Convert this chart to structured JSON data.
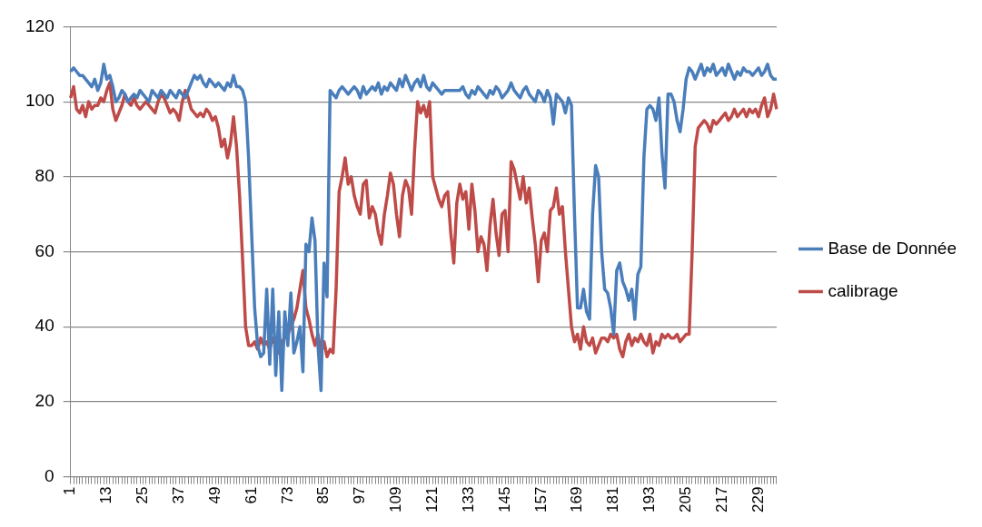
{
  "chart_data": {
    "type": "line",
    "categories": [
      "1",
      null,
      null,
      null,
      null,
      null,
      null,
      null,
      null,
      null,
      null,
      null,
      "13",
      null,
      null,
      null,
      null,
      null,
      null,
      null,
      null,
      null,
      null,
      null,
      "25",
      null,
      null,
      null,
      null,
      null,
      null,
      null,
      null,
      null,
      null,
      null,
      "37",
      null,
      null,
      null,
      null,
      null,
      null,
      null,
      null,
      null,
      null,
      null,
      "49",
      null,
      null,
      null,
      null,
      null,
      null,
      null,
      null,
      null,
      null,
      null,
      "61",
      null,
      null,
      null,
      null,
      null,
      null,
      null,
      null,
      null,
      null,
      null,
      "73",
      null,
      null,
      null,
      null,
      null,
      null,
      null,
      null,
      null,
      null,
      null,
      "85",
      null,
      null,
      null,
      null,
      null,
      null,
      null,
      null,
      null,
      null,
      null,
      "97",
      null,
      null,
      null,
      null,
      null,
      null,
      null,
      null,
      null,
      null,
      null,
      "109",
      null,
      null,
      null,
      null,
      null,
      null,
      null,
      null,
      null,
      null,
      null,
      "121",
      null,
      null,
      null,
      null,
      null,
      null,
      null,
      null,
      null,
      null,
      null,
      "133",
      null,
      null,
      null,
      null,
      null,
      null,
      null,
      null,
      null,
      null,
      null,
      "145",
      null,
      null,
      null,
      null,
      null,
      null,
      null,
      null,
      null,
      null,
      null,
      "157",
      null,
      null,
      null,
      null,
      null,
      null,
      null,
      null,
      null,
      null,
      null,
      "169",
      null,
      null,
      null,
      null,
      null,
      null,
      null,
      null,
      null,
      null,
      null,
      "181",
      null,
      null,
      null,
      null,
      null,
      null,
      null,
      null,
      null,
      null,
      null,
      "193",
      null,
      null,
      null,
      null,
      null,
      null,
      null,
      null,
      null,
      null,
      null,
      "205",
      null,
      null,
      null,
      null,
      null,
      null,
      null,
      null,
      null,
      null,
      null,
      "217",
      null,
      null,
      null,
      null,
      null,
      null,
      null,
      null,
      null,
      null,
      null,
      "229",
      null,
      null,
      null,
      null,
      null,
      null
    ],
    "series": [
      {
        "name": "Base de Donnée",
        "color": "#4a7ebb",
        "values": [
          108,
          109,
          108,
          107,
          107,
          106,
          105,
          104,
          106,
          103,
          105,
          110,
          106,
          107,
          104,
          100,
          101,
          103,
          102,
          100,
          101,
          102,
          101,
          103,
          102,
          101,
          100,
          103,
          102,
          101,
          103,
          102,
          101,
          103,
          102,
          101,
          103,
          102,
          101,
          103,
          105,
          107,
          106,
          107,
          105,
          104,
          106,
          105,
          104,
          105,
          104,
          103,
          105,
          104,
          107,
          104,
          104,
          103,
          100,
          85,
          65,
          45,
          35,
          32,
          33,
          50,
          30,
          50,
          27,
          44,
          23,
          44,
          35,
          49,
          33,
          36,
          40,
          28,
          62,
          60,
          69,
          63,
          35,
          23,
          57,
          48,
          103,
          102,
          101,
          103,
          104,
          103,
          102,
          103,
          104,
          103,
          101,
          104,
          102,
          103,
          104,
          103,
          105,
          102,
          104,
          103,
          105,
          104,
          103,
          106,
          104,
          107,
          105,
          103,
          105,
          106,
          104,
          107,
          104,
          103,
          105,
          104,
          103,
          102,
          103,
          103,
          103,
          103,
          103,
          103,
          104,
          102,
          101,
          103,
          102,
          104,
          103,
          102,
          101,
          103,
          102,
          104,
          103,
          101,
          102,
          103,
          105,
          103,
          102,
          101,
          103,
          104,
          102,
          101,
          100,
          103,
          102,
          100,
          103,
          101,
          94,
          102,
          101,
          100,
          97,
          101,
          99,
          70,
          45,
          45,
          50,
          44,
          42,
          70,
          83,
          80,
          60,
          50,
          49,
          45,
          38,
          55,
          57,
          52,
          50,
          47,
          50,
          42,
          54,
          56,
          85,
          98,
          99,
          98,
          95,
          101,
          86,
          77,
          102,
          102,
          100,
          95,
          92,
          98,
          106,
          109,
          108,
          106,
          108,
          110,
          107,
          109,
          108,
          110,
          107,
          108,
          109,
          107,
          110,
          108,
          106,
          108,
          107,
          109,
          108,
          108,
          107,
          108,
          109,
          107,
          108,
          110,
          107,
          106,
          106
        ]
      },
      {
        "name": "calibrage",
        "color": "#be4b48",
        "values": [
          101,
          104,
          98,
          97,
          99,
          96,
          100,
          98,
          99,
          99,
          101,
          100,
          103,
          105,
          98,
          95,
          97,
          99,
          102,
          100,
          99,
          101,
          99,
          98,
          99,
          100,
          99,
          98,
          97,
          100,
          102,
          101,
          99,
          97,
          98,
          97,
          95,
          100,
          103,
          101,
          98,
          97,
          96,
          97,
          96,
          98,
          97,
          95,
          96,
          93,
          88,
          90,
          85,
          89,
          96,
          88,
          75,
          58,
          40,
          35,
          35,
          36,
          34,
          37,
          35,
          36,
          34,
          37,
          35,
          33,
          36,
          37,
          38,
          40,
          42,
          45,
          50,
          55,
          45,
          42,
          38,
          35,
          38,
          33,
          36,
          32,
          34,
          33,
          50,
          76,
          80,
          85,
          78,
          80,
          75,
          72,
          70,
          78,
          79,
          69,
          72,
          70,
          65,
          62,
          70,
          75,
          81,
          78,
          70,
          64,
          75,
          79,
          77,
          70,
          87,
          100,
          97,
          99,
          96,
          100,
          80,
          77,
          74,
          72,
          75,
          76,
          65,
          57,
          73,
          78,
          74,
          76,
          66,
          78,
          71,
          60,
          64,
          62,
          55,
          67,
          74,
          65,
          59,
          70,
          71,
          60,
          84,
          82,
          78,
          74,
          80,
          73,
          77,
          69,
          62,
          52,
          63,
          65,
          60,
          71,
          72,
          77,
          70,
          72,
          60,
          50,
          40,
          36,
          38,
          34,
          40,
          36,
          35,
          37,
          33,
          35,
          37,
          37,
          36,
          38,
          37,
          38,
          34,
          32,
          36,
          38,
          35,
          37,
          36,
          38,
          36,
          35,
          38,
          33,
          36,
          35,
          38,
          37,
          38,
          37,
          37,
          38,
          36,
          37,
          38,
          38,
          60,
          88,
          93,
          94,
          95,
          94,
          92,
          95,
          94,
          95,
          96,
          97,
          95,
          96,
          98,
          96,
          97,
          98,
          96,
          98,
          97,
          98,
          96,
          99,
          101,
          96,
          98,
          102,
          98
        ]
      }
    ],
    "ylim": [
      0,
      120
    ],
    "yticks": [
      0,
      20,
      40,
      60,
      80,
      100,
      120
    ],
    "grid": "y",
    "legend": "right",
    "marker": "none",
    "line_style": "solid"
  }
}
